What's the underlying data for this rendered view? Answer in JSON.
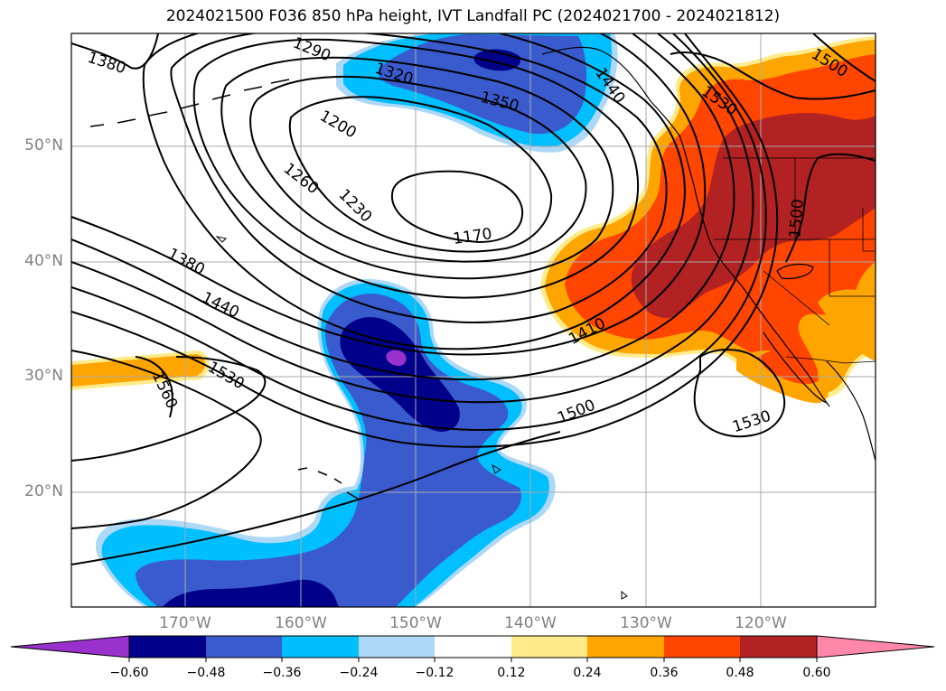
{
  "title": "2024021500 F036 850 hPa height, IVT Landfall PC (2024021700 - 2024021812)",
  "lat_labels": [
    "50°N",
    "40°N",
    "30°N",
    "20°N"
  ],
  "lon_labels": [
    "170°W",
    "160°W",
    "150°W",
    "140°W",
    "130°W",
    "120°W"
  ],
  "contour_labels": [
    "1380",
    "1290",
    "1320",
    "1350",
    "1200",
    "1260",
    "1230",
    "1170",
    "1380",
    "1440",
    "1530",
    "1560",
    "1410",
    "1500",
    "1530",
    "1500",
    "1530",
    "1500",
    "1440"
  ],
  "colorbar": {
    "ticks": [
      "−0.60",
      "−0.48",
      "−0.36",
      "−0.24",
      "−0.12",
      "0.12",
      "0.24",
      "0.36",
      "0.48",
      "0.60"
    ],
    "colors": [
      "#9932cc",
      "#00008b",
      "#3a5bcd",
      "#00bfff",
      "#add8f6",
      "#ffffff",
      "#ffeb8a",
      "#ffa500",
      "#ff4500",
      "#b22222",
      "#ff88aa"
    ]
  }
}
